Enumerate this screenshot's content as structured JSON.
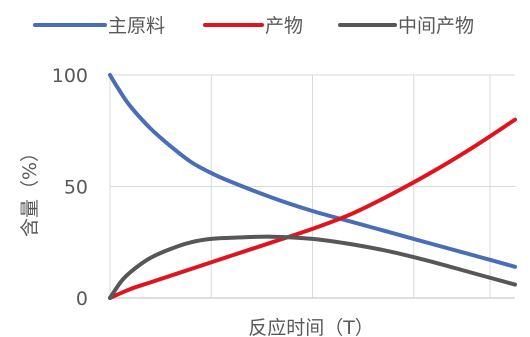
{
  "chart_data": {
    "type": "line",
    "title": "",
    "xlabel": "反应时间（T）",
    "ylabel": "含量（%）",
    "xlim": [
      0,
      1
    ],
    "ylim": [
      0,
      100
    ],
    "yticks": [
      "0",
      "50",
      "100"
    ],
    "grid": true,
    "legend_position": "top",
    "series": [
      {
        "name": "主原料",
        "color": "#4a6eb5",
        "x": [
          0,
          0.02,
          0.05,
          0.1,
          0.15,
          0.2,
          0.25,
          0.3,
          0.4,
          0.5,
          0.6,
          0.7,
          0.8,
          0.9,
          1.0
        ],
        "y": [
          100,
          94,
          86,
          76,
          68,
          61,
          56,
          52,
          45,
          39,
          34,
          29,
          24,
          19,
          14
        ]
      },
      {
        "name": "产物",
        "color": "#e0141e",
        "x": [
          0,
          0.05,
          0.1,
          0.2,
          0.3,
          0.4,
          0.5,
          0.6,
          0.7,
          0.8,
          0.9,
          1.0
        ],
        "y": [
          0,
          4,
          7,
          13,
          19,
          25,
          31,
          38,
          47,
          57,
          68,
          80
        ]
      },
      {
        "name": "中间产物",
        "color": "#575757",
        "x": [
          0,
          0.03,
          0.06,
          0.1,
          0.15,
          0.2,
          0.25,
          0.3,
          0.4,
          0.5,
          0.6,
          0.7,
          0.8,
          0.9,
          1.0
        ],
        "y": [
          0,
          8,
          13,
          18,
          22,
          25,
          26.5,
          27,
          27.5,
          26.5,
          24,
          20.5,
          16,
          11,
          6
        ]
      }
    ]
  }
}
